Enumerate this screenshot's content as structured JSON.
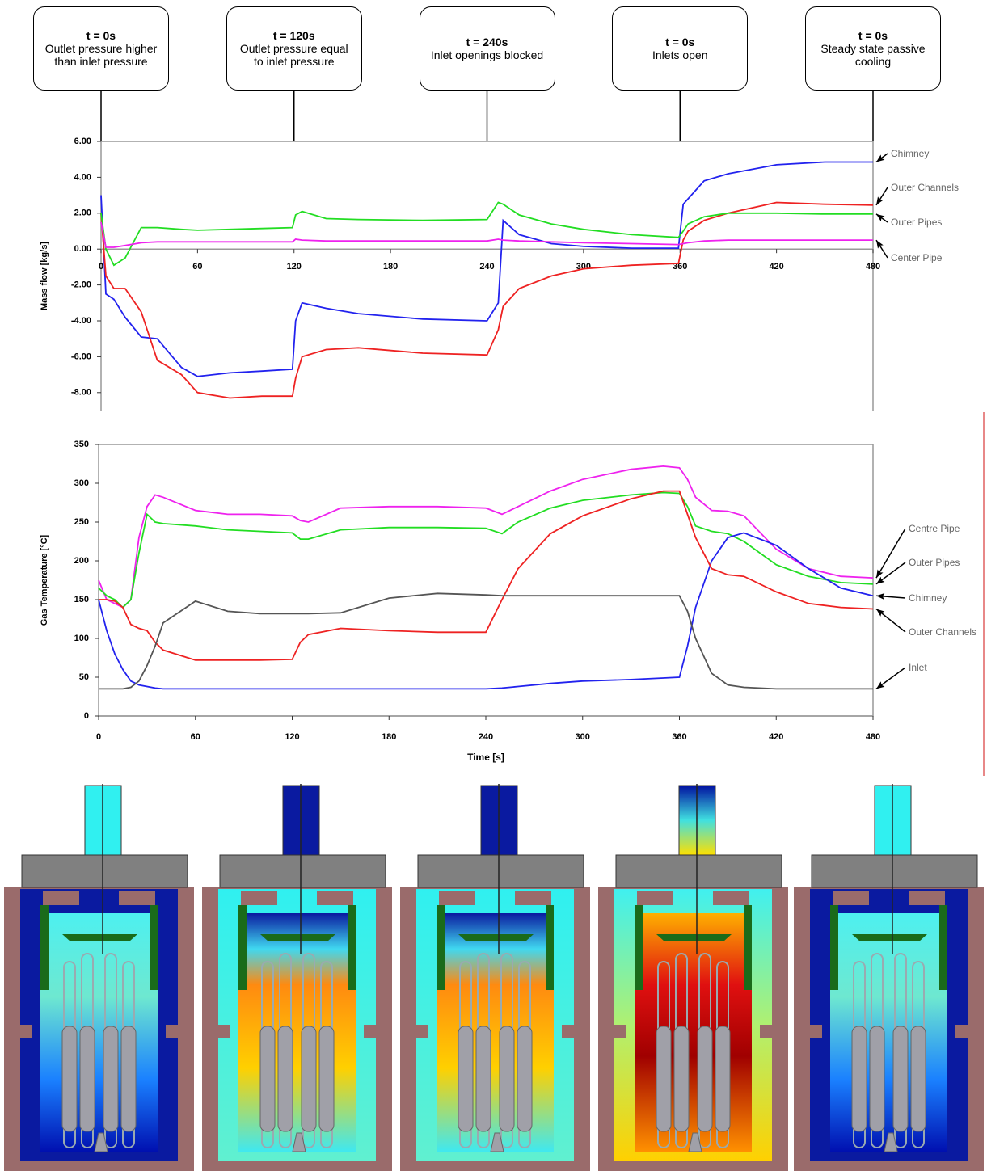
{
  "chart_data": [
    {
      "type": "line",
      "ylabel": "Mass flow [kg/s]",
      "annotations": [
        {
          "x": 0,
          "title": "t = 0s",
          "text": "Outlet pressure higher than inlet pressure"
        },
        {
          "x": 120,
          "title": "t = 120s",
          "text": "Outlet pressure equal to inlet pressure"
        },
        {
          "x": 240,
          "title": "t = 240s",
          "text": "Inlet openings blocked"
        },
        {
          "x": 360,
          "title": "t = 0s",
          "text": "Inlets open"
        },
        {
          "x": 480,
          "title": "t = 0s",
          "text": "Steady state passive cooling"
        }
      ],
      "xlim": [
        0,
        480
      ],
      "xticks": [
        0,
        60,
        120,
        180,
        240,
        300,
        360,
        420,
        480
      ],
      "ylim": [
        -9,
        6
      ],
      "yticks": [
        {
          "value": 6,
          "label": "6.00"
        },
        {
          "value": 4,
          "label": "4.00"
        },
        {
          "value": 2,
          "label": "2.00"
        },
        {
          "value": 0,
          "label": "0.00"
        },
        {
          "value": -2,
          "label": "-2.00"
        },
        {
          "value": -4,
          "label": "-4.00"
        },
        {
          "value": -6,
          "label": "-6.00"
        },
        {
          "value": -8,
          "label": "-8.00"
        }
      ],
      "x": [
        0,
        3,
        8,
        15,
        25,
        35,
        50,
        60,
        80,
        100,
        119,
        121,
        125,
        140,
        160,
        200,
        240,
        247,
        250,
        260,
        280,
        300,
        330,
        359,
        362,
        365,
        375,
        390,
        420,
        450,
        480
      ],
      "series": [
        {
          "name": "Chimney",
          "color": "#2222ee",
          "values": [
            3.0,
            -2.5,
            -2.8,
            -3.8,
            -4.9,
            -5.0,
            -6.6,
            -7.1,
            -6.9,
            -6.8,
            -6.7,
            -4.0,
            -3.0,
            -3.3,
            -3.6,
            -3.9,
            -4.0,
            -3.0,
            1.6,
            0.8,
            0.3,
            0.15,
            0.05,
            0.05,
            2.5,
            2.8,
            3.8,
            4.2,
            4.7,
            4.85,
            4.85
          ]
        },
        {
          "name": "Outer Channels",
          "color": "#ee2222",
          "values": [
            2.0,
            -1.5,
            -2.2,
            -2.2,
            -3.5,
            -6.2,
            -7.0,
            -8.0,
            -8.3,
            -8.2,
            -8.2,
            -7.2,
            -6.0,
            -5.6,
            -5.5,
            -5.8,
            -5.9,
            -4.5,
            -3.2,
            -2.2,
            -1.5,
            -1.1,
            -0.9,
            -0.8,
            0.5,
            1.0,
            1.6,
            2.0,
            2.6,
            2.5,
            2.45
          ]
        },
        {
          "name": "Outer Pipes",
          "color": "#22dd22",
          "values": [
            2.0,
            0,
            -0.9,
            -0.5,
            1.2,
            1.2,
            1.1,
            1.05,
            1.1,
            1.15,
            1.2,
            1.9,
            2.1,
            1.7,
            1.65,
            1.6,
            1.65,
            2.6,
            2.5,
            1.9,
            1.4,
            1.1,
            0.8,
            0.65,
            1.0,
            1.4,
            1.8,
            2.0,
            2.0,
            1.95,
            1.95
          ]
        },
        {
          "name": "Center Pipe",
          "color": "#ee22ee",
          "values": [
            1.5,
            0.1,
            0.1,
            0.2,
            0.35,
            0.4,
            0.4,
            0.4,
            0.4,
            0.4,
            0.4,
            0.55,
            0.5,
            0.45,
            0.45,
            0.45,
            0.45,
            0.55,
            0.5,
            0.45,
            0.4,
            0.35,
            0.3,
            0.25,
            0.3,
            0.35,
            0.45,
            0.5,
            0.5,
            0.5,
            0.5
          ]
        }
      ]
    },
    {
      "type": "line",
      "ylabel": "Gas Temperature [°C]",
      "xlabel": "Time [s]",
      "xlim": [
        0,
        480
      ],
      "xticks": [
        0,
        60,
        120,
        180,
        240,
        300,
        360,
        420,
        480
      ],
      "ylim": [
        0,
        350
      ],
      "yticks": [
        0,
        50,
        100,
        150,
        200,
        250,
        300,
        350
      ],
      "x": [
        0,
        5,
        10,
        15,
        20,
        25,
        30,
        35,
        40,
        60,
        80,
        100,
        120,
        125,
        130,
        150,
        180,
        210,
        240,
        250,
        260,
        280,
        300,
        330,
        350,
        360,
        365,
        370,
        380,
        390,
        400,
        420,
        440,
        460,
        480
      ],
      "series": [
        {
          "name": "Centre Pipe",
          "color": "#ee22ee",
          "values": [
            175,
            150,
            145,
            140,
            150,
            230,
            270,
            285,
            282,
            265,
            260,
            260,
            258,
            252,
            250,
            268,
            270,
            270,
            268,
            260,
            270,
            290,
            305,
            318,
            322,
            320,
            305,
            282,
            265,
            264,
            258,
            215,
            190,
            180,
            178
          ]
        },
        {
          "name": "Outer Pipes",
          "color": "#22dd22",
          "values": [
            165,
            155,
            150,
            140,
            150,
            210,
            260,
            250,
            248,
            245,
            240,
            238,
            236,
            228,
            228,
            240,
            243,
            243,
            242,
            235,
            250,
            268,
            278,
            285,
            288,
            287,
            270,
            245,
            238,
            235,
            225,
            195,
            180,
            172,
            170
          ]
        },
        {
          "name": "Chimney",
          "color": "#2222ee",
          "values": [
            150,
            110,
            80,
            60,
            45,
            40,
            38,
            36,
            35,
            35,
            35,
            35,
            35,
            35,
            35,
            35,
            35,
            35,
            35,
            36,
            38,
            42,
            45,
            47,
            49,
            50,
            90,
            140,
            200,
            230,
            236,
            220,
            190,
            165,
            155
          ]
        },
        {
          "name": "Outer Channels",
          "color": "#ee2222",
          "values": [
            150,
            150,
            148,
            140,
            118,
            113,
            110,
            95,
            85,
            72,
            72,
            72,
            73,
            95,
            105,
            113,
            110,
            108,
            108,
            150,
            190,
            235,
            258,
            280,
            290,
            290,
            260,
            230,
            190,
            182,
            180,
            160,
            145,
            140,
            138
          ]
        },
        {
          "name": "Inlet",
          "color": "#555555",
          "values": [
            35,
            35,
            35,
            35,
            37,
            45,
            65,
            90,
            120,
            148,
            135,
            132,
            132,
            132,
            132,
            133,
            152,
            158,
            156,
            155,
            155,
            155,
            155,
            155,
            155,
            155,
            135,
            100,
            55,
            40,
            37,
            35,
            35,
            35,
            35
          ]
        }
      ]
    }
  ]
}
